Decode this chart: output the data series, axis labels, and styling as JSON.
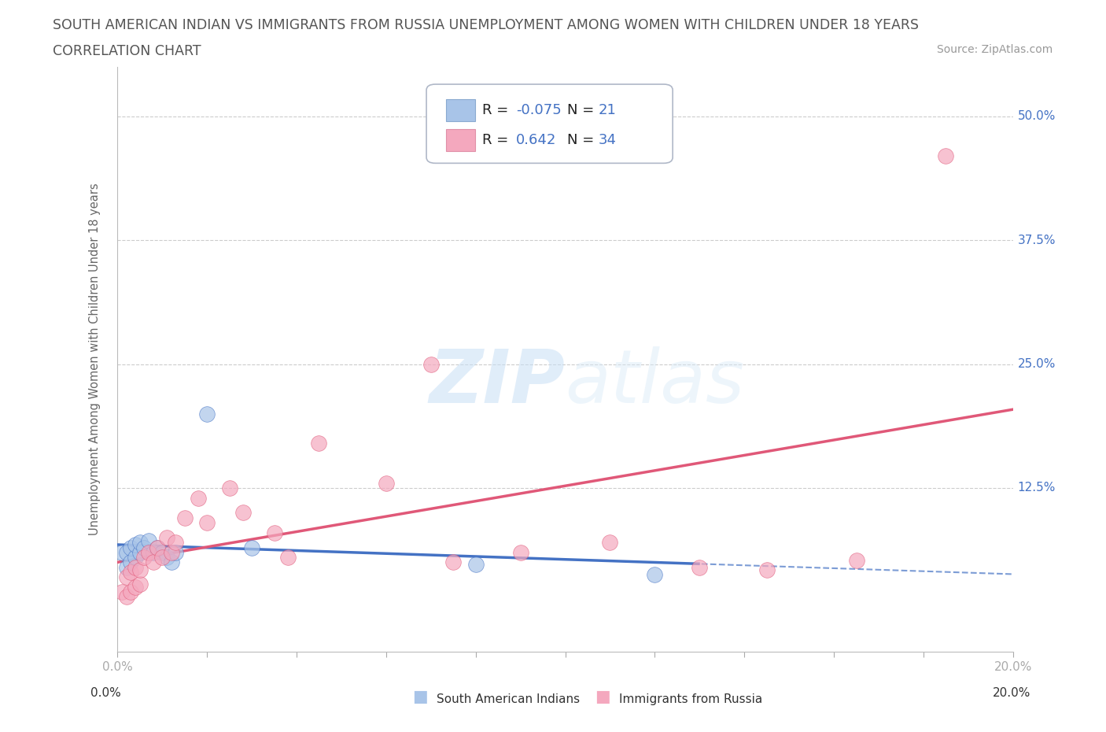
{
  "title_line1": "SOUTH AMERICAN INDIAN VS IMMIGRANTS FROM RUSSIA UNEMPLOYMENT AMONG WOMEN WITH CHILDREN UNDER 18 YEARS",
  "title_line2": "CORRELATION CHART",
  "source": "Source: ZipAtlas.com",
  "ylabel": "Unemployment Among Women with Children Under 18 years",
  "xlim": [
    0.0,
    0.2
  ],
  "ylim": [
    -0.04,
    0.55
  ],
  "watermark": "ZIPatlas",
  "blue_label": "South American Indians",
  "pink_label": "Immigrants from Russia",
  "blue_R": "-0.075",
  "blue_N": "21",
  "pink_R": "0.642",
  "pink_N": "34",
  "blue_color": "#a8c4e8",
  "pink_color": "#f4a8be",
  "blue_line_color": "#4472c4",
  "pink_line_color": "#e05878",
  "background_color": "#ffffff",
  "grid_color": "#cccccc",
  "blue_scatter_x": [
    0.001,
    0.002,
    0.002,
    0.003,
    0.003,
    0.004,
    0.004,
    0.005,
    0.005,
    0.006,
    0.007,
    0.008,
    0.009,
    0.01,
    0.011,
    0.012,
    0.013,
    0.02,
    0.03,
    0.08,
    0.12
  ],
  "blue_scatter_y": [
    0.035,
    0.025,
    0.045,
    0.03,
    0.05,
    0.04,
    0.06,
    0.035,
    0.055,
    0.065,
    0.07,
    0.06,
    0.075,
    0.065,
    0.06,
    0.055,
    0.065,
    0.2,
    0.075,
    0.05,
    0.045
  ],
  "pink_scatter_x": [
    0.001,
    0.002,
    0.002,
    0.003,
    0.003,
    0.004,
    0.004,
    0.005,
    0.005,
    0.006,
    0.007,
    0.008,
    0.009,
    0.01,
    0.011,
    0.012,
    0.013,
    0.015,
    0.018,
    0.02,
    0.025,
    0.03,
    0.035,
    0.04,
    0.045,
    0.06,
    0.07,
    0.08,
    0.09,
    0.11,
    0.13,
    0.15,
    0.17,
    0.185
  ],
  "pink_scatter_y": [
    0.025,
    0.015,
    0.04,
    0.02,
    0.035,
    0.03,
    0.045,
    0.025,
    0.04,
    0.06,
    0.065,
    0.055,
    0.07,
    0.06,
    0.08,
    0.065,
    0.075,
    0.1,
    0.12,
    0.095,
    0.13,
    0.11,
    0.085,
    0.06,
    0.17,
    0.14,
    0.25,
    0.055,
    0.065,
    0.08,
    0.05,
    0.045,
    0.055,
    0.46
  ]
}
